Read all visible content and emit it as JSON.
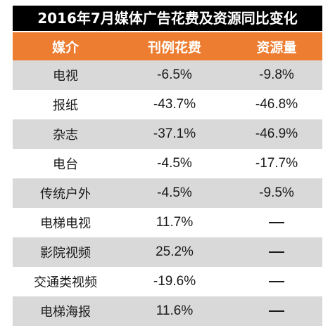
{
  "chart_data": {
    "type": "table",
    "title": "2016年7月媒体广告花费及资源同比变化",
    "columns": [
      "媒介",
      "刊例花费",
      "资源量"
    ],
    "rows": [
      {
        "media": "电视",
        "ad_spend": "-6.5%",
        "resource": "-9.8%"
      },
      {
        "media": "报纸",
        "ad_spend": "-43.7%",
        "resource": "-46.8%"
      },
      {
        "media": "杂志",
        "ad_spend": "-37.1%",
        "resource": "-46.9%"
      },
      {
        "media": "电台",
        "ad_spend": "-4.5%",
        "resource": "-17.7%"
      },
      {
        "media": "传统户外",
        "ad_spend": "-4.5%",
        "resource": "-9.5%"
      },
      {
        "media": "电梯电视",
        "ad_spend": "11.7%",
        "resource": "—"
      },
      {
        "media": "影院视频",
        "ad_spend": "25.2%",
        "resource": "—"
      },
      {
        "media": "交通类视频",
        "ad_spend": "-19.6%",
        "resource": "—"
      },
      {
        "media": "电梯海报",
        "ad_spend": "11.6%",
        "resource": "—"
      }
    ]
  },
  "colors": {
    "title_bg": "#000000",
    "header_bg": "#ed7d31",
    "shaded_row": "#d9d9d9",
    "text": "#1a1a1a"
  }
}
